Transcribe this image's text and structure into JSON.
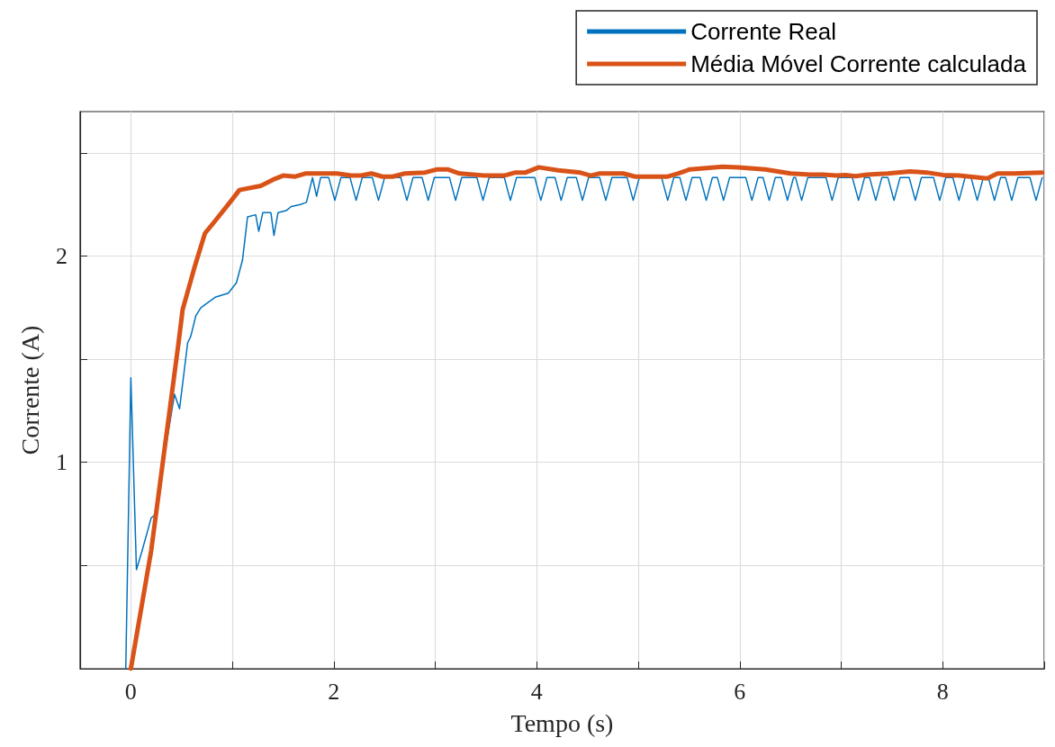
{
  "chart_data": {
    "type": "line",
    "xlabel": "Tempo (s)",
    "ylabel": "Corrente (A)",
    "xlim": [
      -0.5,
      9
    ],
    "xticks": [
      0,
      {
        "value": 1,
        "label": null
      },
      2,
      {
        "value": 3,
        "label": null
      },
      4,
      {
        "value": 5,
        "label": null
      },
      6,
      {
        "value": 7,
        "label": null
      },
      8,
      {
        "value": 9,
        "label": null
      }
    ],
    "ylim": [
      0,
      2.7
    ],
    "yticks": [
      {
        "value": 0.5,
        "label": null
      },
      1,
      {
        "value": 1.5,
        "label": null
      },
      2,
      {
        "value": 2.5,
        "label": null
      }
    ],
    "grid": true,
    "legend": "top right",
    "line_style": "solid",
    "marker": "none",
    "series": [
      {
        "name": "Corrente Real",
        "color": "#0072bd",
        "x": [
          -0.05,
          0,
          0.055,
          0.11,
          0.2,
          0.235,
          0.43,
          0.48,
          0.56,
          0.59,
          0.64,
          0.69,
          0.83,
          0.96,
          1.04,
          1.1,
          1.15,
          1.23,
          1.26,
          1.3,
          1.38,
          1.41,
          1.45,
          1.53,
          1.58,
          1.67,
          1.73,
          1.79,
          1.83,
          1.87,
          1.95,
          2.01,
          2.07,
          2.16,
          2.22,
          2.28,
          2.38,
          2.44,
          2.5,
          2.66,
          2.72,
          2.78,
          2.87,
          2.93,
          2.99,
          3.14,
          3.2,
          3.26,
          3.41,
          3.47,
          3.53,
          3.68,
          3.74,
          3.8,
          3.98,
          4.04,
          4.1,
          4.18,
          4.24,
          4.3,
          4.39,
          4.45,
          4.51,
          4.62,
          4.68,
          4.74,
          4.89,
          4.95,
          5.01,
          5.23,
          5.29,
          5.35,
          5.41,
          5.47,
          5.53,
          5.61,
          5.67,
          5.73,
          5.78,
          5.84,
          5.9,
          6.06,
          6.12,
          6.18,
          6.23,
          6.29,
          6.35,
          6.41,
          6.47,
          6.53,
          6.55,
          6.61,
          6.67,
          6.85,
          6.91,
          6.97,
          7.11,
          7.17,
          7.23,
          7.28,
          7.34,
          7.4,
          7.46,
          7.52,
          7.58,
          7.67,
          7.73,
          7.79,
          7.91,
          7.97,
          8.03,
          8.1,
          8.16,
          8.22,
          8.28,
          8.34,
          8.4,
          8.45,
          8.51,
          8.57,
          8.62,
          8.68,
          8.74,
          8.86,
          8.92,
          8.98
        ],
        "values": [
          0,
          1.41,
          0.48,
          0.57,
          0.73,
          0.745,
          1.33,
          1.26,
          1.58,
          1.61,
          1.71,
          1.75,
          1.8,
          1.82,
          1.87,
          1.98,
          2.19,
          2.2,
          2.12,
          2.21,
          2.21,
          2.1,
          2.21,
          2.22,
          2.24,
          2.25,
          2.26,
          2.38,
          2.29,
          2.38,
          2.38,
          2.27,
          2.38,
          2.38,
          2.27,
          2.38,
          2.38,
          2.27,
          2.38,
          2.38,
          2.27,
          2.38,
          2.38,
          2.27,
          2.38,
          2.38,
          2.27,
          2.38,
          2.38,
          2.27,
          2.38,
          2.38,
          2.27,
          2.38,
          2.38,
          2.27,
          2.38,
          2.38,
          2.27,
          2.38,
          2.38,
          2.27,
          2.38,
          2.38,
          2.27,
          2.38,
          2.38,
          2.27,
          2.38,
          2.38,
          2.27,
          2.38,
          2.38,
          2.27,
          2.38,
          2.38,
          2.27,
          2.38,
          2.38,
          2.27,
          2.38,
          2.38,
          2.27,
          2.38,
          2.38,
          2.27,
          2.38,
          2.38,
          2.27,
          2.38,
          2.38,
          2.27,
          2.38,
          2.38,
          2.27,
          2.38,
          2.38,
          2.27,
          2.38,
          2.38,
          2.27,
          2.38,
          2.38,
          2.27,
          2.38,
          2.38,
          2.27,
          2.38,
          2.38,
          2.27,
          2.38,
          2.38,
          2.27,
          2.38,
          2.38,
          2.27,
          2.38,
          2.38,
          2.27,
          2.38,
          2.38,
          2.27,
          2.38,
          2.38,
          2.27,
          2.38
        ]
      },
      {
        "name": "Média Móvel Corrente calculada",
        "color": "#d95319",
        "x": [
          0,
          0.2,
          0.47,
          0.51,
          0.63,
          0.73,
          0.83,
          0.96,
          1.07,
          1.28,
          1.4,
          1.5,
          1.62,
          1.72,
          2.03,
          2.17,
          2.27,
          2.37,
          2.48,
          2.58,
          2.7,
          2.9,
          3.02,
          3.12,
          3.24,
          3.48,
          3.68,
          3.79,
          3.89,
          4.02,
          4.21,
          4.43,
          4.53,
          4.62,
          4.85,
          4.97,
          5.29,
          5.39,
          5.51,
          5.83,
          5.99,
          6.25,
          6.5,
          6.69,
          6.82,
          6.95,
          7.04,
          7.14,
          7.26,
          7.46,
          7.68,
          7.84,
          8.0,
          8.16,
          8.44,
          8.54,
          8.7,
          8.98
        ],
        "values": [
          0,
          0.571,
          1.58,
          1.74,
          1.95,
          2.11,
          2.17,
          2.25,
          2.32,
          2.34,
          2.37,
          2.39,
          2.385,
          2.4,
          2.4,
          2.39,
          2.39,
          2.4,
          2.385,
          2.385,
          2.4,
          2.405,
          2.42,
          2.42,
          2.4,
          2.39,
          2.39,
          2.405,
          2.405,
          2.43,
          2.415,
          2.404,
          2.39,
          2.4,
          2.4,
          2.385,
          2.385,
          2.4,
          2.42,
          2.433,
          2.43,
          2.42,
          2.4,
          2.395,
          2.395,
          2.39,
          2.393,
          2.387,
          2.395,
          2.4,
          2.41,
          2.405,
          2.393,
          2.39,
          2.376,
          2.4,
          2.4,
          2.405
        ]
      }
    ]
  }
}
